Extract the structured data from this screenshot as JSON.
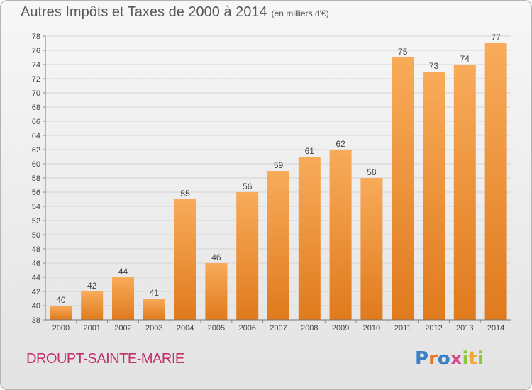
{
  "header": {
    "title": "Autres Impôts et Taxes de 2000 à 2014",
    "unit": "(en milliers d'€)"
  },
  "footer": {
    "commune": "DROUPT-SAINTE-MARIE",
    "logo_letters": [
      "P",
      "r",
      "o",
      "x",
      "i",
      "t",
      "i"
    ],
    "logo_colors": [
      "#3b7fc4",
      "#e8732a",
      "#3b7fc4",
      "#d64b8a",
      "#8cc63f",
      "#f0a830",
      "#8cc63f"
    ]
  },
  "colors": {
    "bar_top": "#f8ab5a",
    "bar_bottom": "#e07a1d",
    "title": "#5a5a5a",
    "commune": "#c0306a"
  },
  "chart_data": {
    "type": "bar",
    "categories": [
      "2000",
      "2001",
      "2002",
      "2003",
      "2004",
      "2005",
      "2006",
      "2007",
      "2008",
      "2009",
      "2010",
      "2011",
      "2012",
      "2013",
      "2014"
    ],
    "values": [
      40,
      42,
      44,
      41,
      55,
      46,
      56,
      59,
      61,
      62,
      58,
      75,
      73,
      74,
      77
    ],
    "ylim": [
      38,
      78
    ],
    "yticks": [
      38,
      40,
      42,
      44,
      46,
      48,
      50,
      52,
      54,
      56,
      58,
      60,
      62,
      64,
      66,
      68,
      70,
      72,
      74,
      76,
      78
    ],
    "grid": true
  }
}
